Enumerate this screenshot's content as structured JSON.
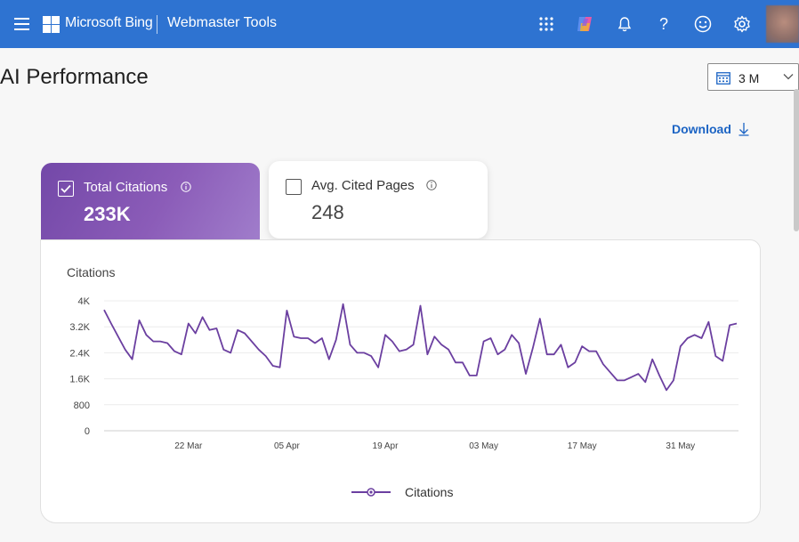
{
  "header": {
    "brand": "Microsoft Bing",
    "product": "Webmaster Tools",
    "icons": [
      "menu-icon",
      "apps-grid-icon",
      "copilot-icon",
      "notification-bell-icon",
      "help-icon",
      "feedback-smiley-icon",
      "settings-gear-icon"
    ]
  },
  "page": {
    "title": "AI Performance",
    "date_range": "3 M",
    "download_label": "Download"
  },
  "metrics": {
    "total_citations": {
      "label": "Total Citations",
      "value": "233K",
      "selected": true
    },
    "avg_cited_pages": {
      "label": "Avg. Cited Pages",
      "value": "248",
      "selected": false
    }
  },
  "colors": {
    "topbar": "#2e73d1",
    "accent_purple": "#7348a8",
    "series_line": "#6b3fa0",
    "link": "#1c64c4"
  },
  "chart_data": {
    "type": "line",
    "title": "Citations",
    "ylim": [
      0,
      4000
    ],
    "y_ticks": [
      "4K",
      "3.2K",
      "2.4K",
      "1.6K",
      "800",
      "0"
    ],
    "y_tick_values": [
      4000,
      3200,
      2400,
      1600,
      800,
      0
    ],
    "x_tick_labels": [
      "22 Mar",
      "05 Apr",
      "19 Apr",
      "03 May",
      "17 May",
      "31 May"
    ],
    "x_tick_index": [
      12,
      26,
      40,
      54,
      68,
      82
    ],
    "legend": "Citations",
    "series": [
      {
        "name": "Citations",
        "values": [
          3720,
          3300,
          2900,
          2500,
          2200,
          3400,
          2950,
          2750,
          2750,
          2700,
          2450,
          2350,
          3300,
          3000,
          3500,
          3100,
          3150,
          2500,
          2400,
          3100,
          3000,
          2750,
          2500,
          2300,
          2000,
          1950,
          3700,
          2900,
          2850,
          2850,
          2700,
          2850,
          2200,
          2800,
          3900,
          2650,
          2400,
          2400,
          2300,
          1950,
          2950,
          2750,
          2450,
          2500,
          2650,
          3850,
          2350,
          2900,
          2650,
          2500,
          2100,
          2100,
          1700,
          1700,
          2750,
          2850,
          2350,
          2500,
          2950,
          2700,
          1750,
          2550,
          3450,
          2350,
          2350,
          2650,
          1950,
          2100,
          2600,
          2450,
          2450,
          2050,
          1800,
          1550,
          1550,
          1650,
          1750,
          1500,
          2200,
          1700,
          1250,
          1550,
          2600,
          2850,
          2950,
          2850,
          3350,
          2300,
          2150,
          3250,
          3300
        ]
      }
    ]
  }
}
